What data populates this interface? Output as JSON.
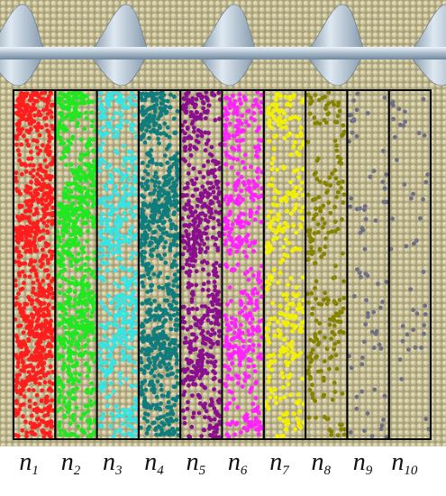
{
  "columns": [
    {
      "label": "n",
      "subscript": "1",
      "color": "#ff1e1e"
    },
    {
      "label": "n",
      "subscript": "2",
      "color": "#20e820"
    },
    {
      "label": "n",
      "subscript": "3",
      "color": "#35e4e4"
    },
    {
      "label": "n",
      "subscript": "4",
      "color": "#0f7d7d"
    },
    {
      "label": "n",
      "subscript": "5",
      "color": "#8a0f8e"
    },
    {
      "label": "n",
      "subscript": "6",
      "color": "#ff24ff"
    },
    {
      "label": "n",
      "subscript": "7",
      "color": "#f2f000"
    },
    {
      "label": "n",
      "subscript": "8",
      "color": "#858200"
    },
    {
      "label": "n",
      "subscript": "9",
      "color": "#6e6e86"
    },
    {
      "label": "n",
      "subscript": "10",
      "color": "#6e6e86"
    }
  ]
}
